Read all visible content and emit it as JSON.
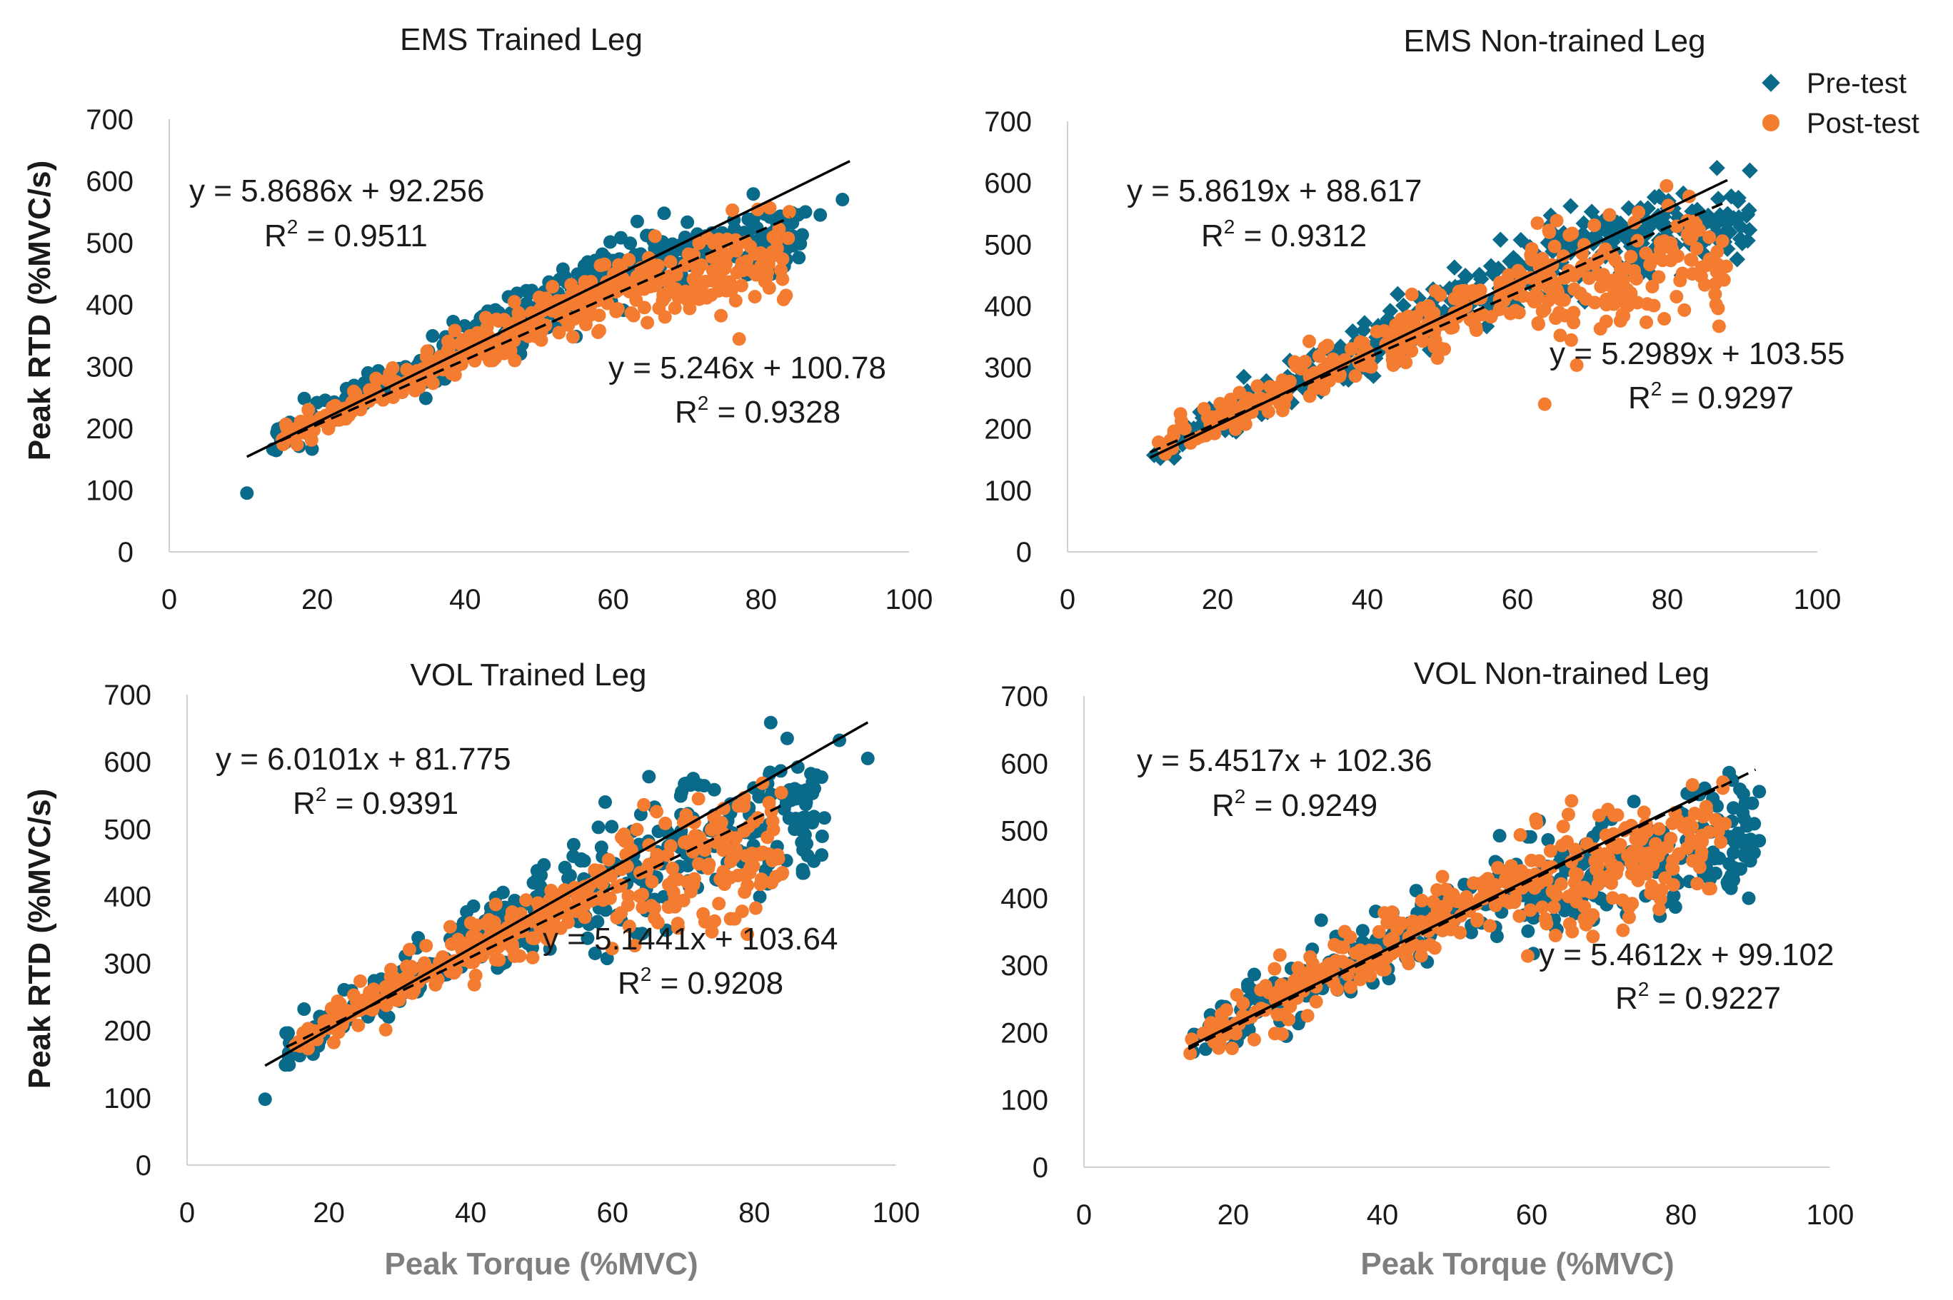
{
  "colors": {
    "pre": "#0a6a8a",
    "post": "#f47c30",
    "axis": "#d0d0d0",
    "trend": "#000000"
  },
  "legend": {
    "pre": {
      "label": "Pre-test",
      "marker": "diamond"
    },
    "post": {
      "label": "Post-test",
      "marker": "circle"
    }
  },
  "axes": {
    "ylabel": "Peak RTD (%MVC/s)",
    "xlabel": "Peak Torque (%MVC)"
  },
  "chart_data": [
    {
      "type": "scatter",
      "title": "EMS Trained Leg",
      "xlim": [
        0,
        100
      ],
      "ylim": [
        0,
        700
      ],
      "xticks": [
        "0",
        "20",
        "40",
        "60",
        "80",
        "100"
      ],
      "yticks": [
        "0",
        "100",
        "200",
        "300",
        "400",
        "500",
        "600",
        "700"
      ],
      "pre_marker": "circle",
      "series": [
        {
          "name": "Pre-test",
          "fit": {
            "slope": 5.8686,
            "intercept": 92.256,
            "x_range": [
              10.5,
              92
            ],
            "equation": "y = 5.8686x + 92.256",
            "r2": "0.9511",
            "line": "solid"
          },
          "scatter": {
            "x_range": [
              14,
              86
            ],
            "noise": 22,
            "plateau": [
              66,
              86
            ],
            "plateau_y": [
              470,
              560
            ],
            "outliers": [
              [
                10.5,
                95
              ],
              [
                91,
                570
              ],
              [
                88,
                545
              ],
              [
                86,
                550
              ]
            ]
          }
        },
        {
          "name": "Post-test",
          "fit": {
            "slope": 5.246,
            "intercept": 100.78,
            "x_range": [
              15,
              84
            ],
            "equation": "y = 5.246x + 100.78",
            "r2": "0.9328",
            "line": "dashed"
          },
          "scatter": {
            "x_range": [
              15,
              84
            ],
            "noise": 18,
            "plateau": [
              62,
              84
            ],
            "plateau_y": [
              420,
              530
            ],
            "outliers": []
          }
        }
      ]
    },
    {
      "type": "scatter",
      "title": "EMS Non-trained Leg",
      "xlim": [
        0,
        100
      ],
      "ylim": [
        0,
        700
      ],
      "xticks": [
        "0",
        "20",
        "40",
        "60",
        "80",
        "100"
      ],
      "yticks": [
        "0",
        "100",
        "200",
        "300",
        "400",
        "500",
        "600",
        "700"
      ],
      "pre_marker": "diamond",
      "series": [
        {
          "name": "Pre-test",
          "fit": {
            "slope": 5.8619,
            "intercept": 88.617,
            "x_range": [
              11,
              88
            ],
            "equation": "y = 5.8619x + 88.617",
            "r2": "0.9312",
            "line": "solid"
          },
          "scatter": {
            "x_range": [
              11,
              91
            ],
            "noise": 24,
            "plateau": [
              70,
              88
            ],
            "plateau_y": [
              480,
              580
            ],
            "outliers": [
              [
                91,
                620
              ],
              [
                86,
                535
              ]
            ]
          }
        },
        {
          "name": "Post-test",
          "fit": {
            "slope": 5.2989,
            "intercept": 103.55,
            "x_range": [
              11,
              88
            ],
            "equation": "y = 5.2989x + 103.55",
            "r2": "0.9297",
            "line": "dashed"
          },
          "scatter": {
            "x_range": [
              11,
              88
            ],
            "noise": 20,
            "plateau": [
              62,
              88
            ],
            "plateau_y": [
              400,
              540
            ],
            "outliers": []
          }
        }
      ]
    },
    {
      "type": "scatter",
      "title": "VOL Trained Leg",
      "xlim": [
        0,
        100
      ],
      "ylim": [
        0,
        700
      ],
      "xticks": [
        "0",
        "20",
        "40",
        "60",
        "80",
        "100"
      ],
      "yticks": [
        "0",
        "100",
        "200",
        "300",
        "400",
        "500",
        "600",
        "700"
      ],
      "pre_marker": "circle",
      "series": [
        {
          "name": "Pre-test",
          "fit": {
            "slope": 6.0101,
            "intercept": 81.775,
            "x_range": [
              11,
              96
            ],
            "equation": "y = 6.0101x + 81.775",
            "r2": "0.9391",
            "line": "solid"
          },
          "scatter": {
            "x_range": [
              13,
              90
            ],
            "noise": 26,
            "plateau": [
              55,
              86
            ],
            "plateau_y": [
              440,
              610
            ],
            "outliers": [
              [
                11,
                98
              ],
              [
                96,
                605
              ],
              [
                92,
                632
              ]
            ]
          }
        },
        {
          "name": "Post-test",
          "fit": {
            "slope": 5.1441,
            "intercept": 103.64,
            "x_range": [
              14,
              84
            ],
            "equation": "y = 5.1441x + 103.64",
            "r2": "0.9208",
            "line": "dashed"
          },
          "scatter": {
            "x_range": [
              15,
              84
            ],
            "noise": 18,
            "plateau": [
              58,
              84
            ],
            "plateau_y": [
              400,
              560
            ],
            "outliers": []
          }
        }
      ]
    },
    {
      "type": "scatter",
      "title": "VOL Non-trained Leg",
      "xlim": [
        0,
        100
      ],
      "ylim": [
        0,
        700
      ],
      "xticks": [
        "0",
        "20",
        "40",
        "60",
        "80",
        "100"
      ],
      "yticks": [
        "0",
        "100",
        "200",
        "300",
        "400",
        "500",
        "600",
        "700"
      ],
      "pre_marker": "circle",
      "series": [
        {
          "name": "Pre-test",
          "fit": {
            "slope": 5.4517,
            "intercept": 102.36,
            "x_range": [
              14,
              85
            ],
            "equation": "y = 5.4517x + 102.36",
            "r2": "0.9249",
            "line": "solid"
          },
          "scatter": {
            "x_range": [
              14,
              90
            ],
            "noise": 26,
            "plateau": [
              58,
              86
            ],
            "plateau_y": [
              410,
              540
            ],
            "outliers": [
              [
                90.5,
                558
              ],
              [
                90.5,
                485
              ],
              [
                46,
                305
              ]
            ]
          }
        },
        {
          "name": "Post-test",
          "fit": {
            "slope": 5.4612,
            "intercept": 99.102,
            "x_range": [
              14,
              90
            ],
            "equation": "y = 5.4612x + 99.102",
            "r2": "0.9227",
            "line": "dashed"
          },
          "scatter": {
            "x_range": [
              14,
              86
            ],
            "noise": 22,
            "plateau": [
              58,
              86
            ],
            "plateau_y": [
              430,
              570
            ],
            "outliers": []
          }
        }
      ]
    }
  ]
}
